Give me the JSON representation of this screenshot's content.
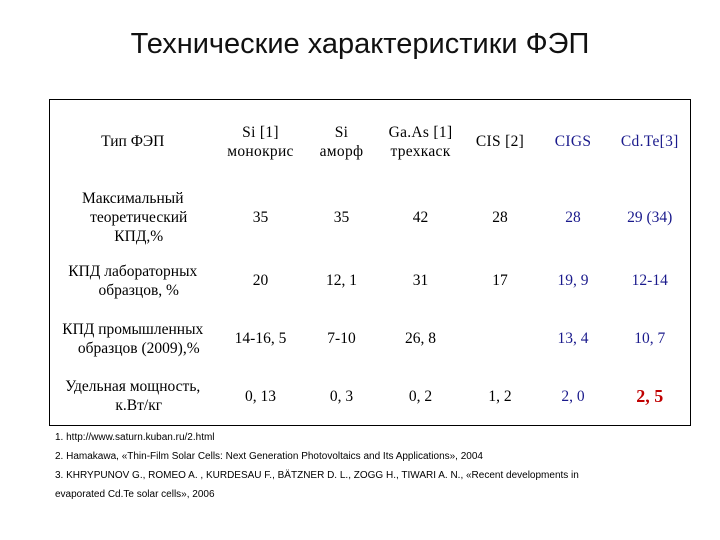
{
  "slide": {
    "title": "Технические характеристики ФЭП"
  },
  "table": {
    "header_corner": "Тип ФЭП",
    "columns": [
      {
        "line1": "Si [1]",
        "line2": "монокрис"
      },
      {
        "line1": "Si",
        "line2": "аморф"
      },
      {
        "line1": "Ga.As [1]",
        "line2": "трехкаск"
      },
      {
        "line1": "CIS [2]",
        "line2": ""
      },
      {
        "line1": "CIGS",
        "line2": ""
      },
      {
        "line1": "Cd.Te[3]",
        "line2": ""
      }
    ],
    "rows": [
      {
        "label_lines": [
          "Максимальный",
          "теоретический",
          "КПД,%"
        ],
        "values": [
          "35",
          "35",
          "42",
          "28",
          "28",
          "29 (34)"
        ]
      },
      {
        "label_lines": [
          "КПД лабораторных",
          "образцов, %"
        ],
        "values": [
          "20",
          "12, 1",
          "31",
          "17",
          "19, 9",
          "12-14"
        ]
      },
      {
        "label_lines": [
          "КПД промышленных",
          "образцов (2009),%"
        ],
        "values": [
          "14-16, 5",
          "7-10",
          "26, 8",
          "",
          "13, 4",
          "10, 7"
        ]
      },
      {
        "label_lines": [
          "Удельная мощность,",
          "к.Вт/кг"
        ],
        "values": [
          "0, 13",
          "0, 3",
          "0, 2",
          "1, 2",
          "2, 0",
          "2, 5"
        ]
      }
    ]
  },
  "footnotes": [
    "1. http://www.saturn.kuban.ru/2.html",
    "2. Hamakawa, «Thin-Film Solar Cells: Next Generation Photovoltaics and Its Applications», 2004",
    "3. KHRYPUNOV G., ROMEO A. , KURDESAU F., BÄTZNER D. L., ZOGG H., TIWARI A. N., «Recent developments in",
    "evaporated Cd.Te solar cells», 2006"
  ],
  "colors": {
    "text": "#000000",
    "cigs_header_accent": "#1a1a8c",
    "cdte_power_highlight": "#c00000"
  }
}
